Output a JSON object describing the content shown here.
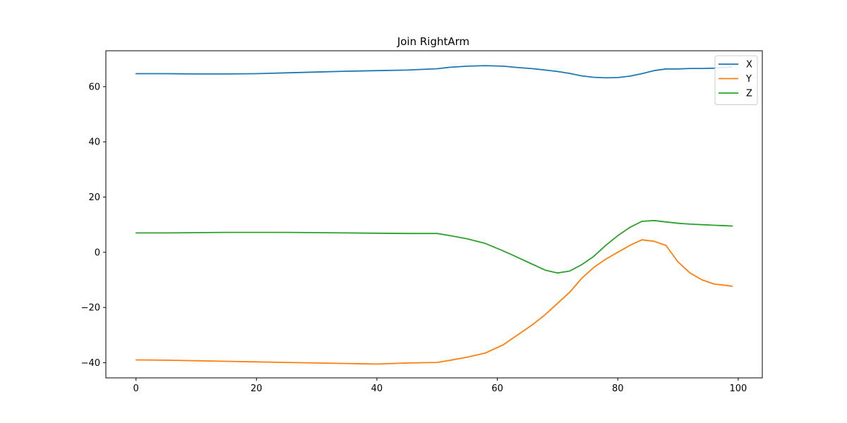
{
  "chart_data": {
    "type": "line",
    "title": "Join RightArm",
    "xlabel": "",
    "ylabel": "",
    "xlim": [
      -5,
      104
    ],
    "ylim": [
      -45.5,
      73
    ],
    "xticks": [
      0,
      20,
      40,
      60,
      80,
      100
    ],
    "yticks": [
      -40,
      -20,
      0,
      20,
      40,
      60
    ],
    "xtick_labels": [
      "0",
      "20",
      "40",
      "60",
      "80",
      "100"
    ],
    "ytick_labels": [
      "−40",
      "−20",
      "0",
      "20",
      "40",
      "60"
    ],
    "grid": false,
    "legend_position": "top-right",
    "x_points": [
      0,
      5,
      10,
      15,
      20,
      25,
      30,
      35,
      40,
      45,
      50,
      52,
      55,
      58,
      61,
      63,
      66,
      68,
      70,
      72,
      74,
      76,
      78,
      80,
      82,
      84,
      86,
      88,
      90,
      92,
      94,
      96,
      98,
      99
    ],
    "series": [
      {
        "name": "X",
        "color": "#1f77b4",
        "values": [
          64.7,
          64.7,
          64.6,
          64.6,
          64.7,
          65.0,
          65.3,
          65.6,
          65.8,
          66.0,
          66.5,
          67.0,
          67.4,
          67.6,
          67.4,
          67.0,
          66.5,
          66.0,
          65.5,
          64.8,
          63.9,
          63.4,
          63.2,
          63.3,
          63.8,
          64.7,
          65.8,
          66.4,
          66.4,
          66.6,
          66.6,
          66.7,
          67.0,
          67.2
        ]
      },
      {
        "name": "Y",
        "color": "#ff7f0e",
        "values": [
          -39.0,
          -39.1,
          -39.3,
          -39.5,
          -39.7,
          -39.9,
          -40.1,
          -40.3,
          -40.5,
          -40.1,
          -39.9,
          -39.2,
          -38.0,
          -36.5,
          -33.5,
          -30.5,
          -26.0,
          -22.5,
          -18.5,
          -14.5,
          -9.5,
          -5.5,
          -2.5,
          0.0,
          2.5,
          4.5,
          4.0,
          2.5,
          -3.5,
          -7.5,
          -10.0,
          -11.5,
          -12.0,
          -12.3
        ]
      },
      {
        "name": "Z",
        "color": "#2ca02c",
        "values": [
          7.0,
          7.0,
          7.1,
          7.2,
          7.2,
          7.2,
          7.1,
          7.0,
          6.9,
          6.8,
          6.8,
          6.1,
          4.9,
          3.2,
          0.5,
          -1.5,
          -4.5,
          -6.5,
          -7.5,
          -6.8,
          -4.5,
          -1.5,
          2.5,
          6.0,
          9.0,
          11.2,
          11.5,
          11.0,
          10.5,
          10.2,
          10.0,
          9.8,
          9.6,
          9.5
        ]
      }
    ]
  }
}
